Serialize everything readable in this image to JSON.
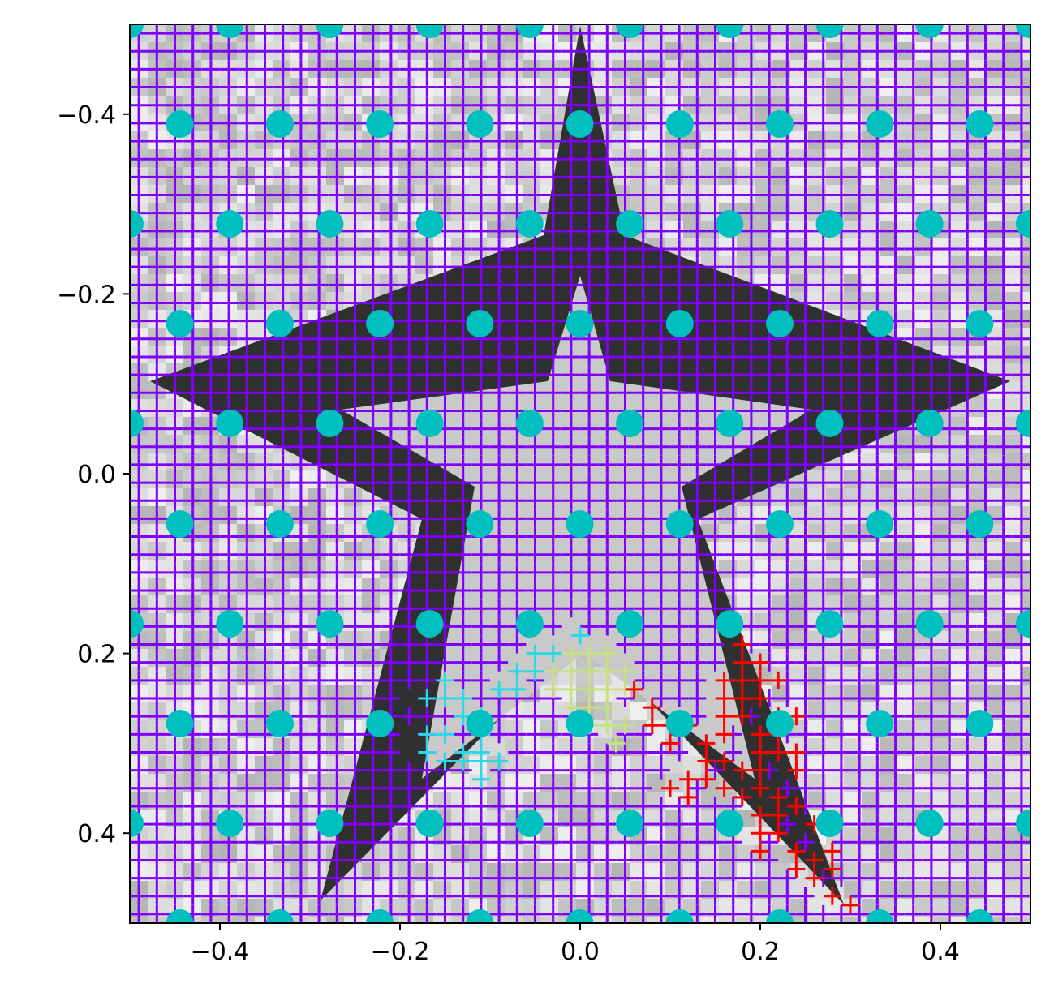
{
  "chart_data": {
    "type": "scatter",
    "title": "",
    "xlabel": "",
    "ylabel": "",
    "xlim": [
      -0.5,
      0.5
    ],
    "ylim": [
      0.5,
      -0.5
    ],
    "y_inverted": true,
    "grid": false,
    "background": "grayscale noisy image of a five-pointed star (dark star on light mottled background)",
    "x_ticks": [
      -0.4,
      -0.2,
      0.0,
      0.2,
      0.4
    ],
    "x_tick_labels": [
      "−0.4",
      "−0.2",
      "0.0",
      "0.2",
      "0.4"
    ],
    "y_ticks": [
      -0.4,
      -0.2,
      0.0,
      0.2,
      0.4
    ],
    "y_tick_labels": [
      "−0.4",
      "−0.2",
      "0.0",
      "0.2",
      "0.4"
    ],
    "series": [
      {
        "name": "purple-plus-grid",
        "marker": "+",
        "color": "#8000ff",
        "grid_x_start": -0.49,
        "grid_x_step": 0.02,
        "grid_x_count": 50,
        "grid_y_start": -0.49,
        "grid_y_step": 0.02,
        "grid_y_count": 50,
        "note": "dense plus markers covering the whole plot except points recolored in other series"
      },
      {
        "name": "cyan-plus-cluster",
        "marker": "+",
        "color": "#2ad9e8",
        "points": [
          [
            -0.15,
            0.23
          ],
          [
            -0.17,
            0.25
          ],
          [
            -0.15,
            0.25
          ],
          [
            -0.13,
            0.25
          ],
          [
            -0.05,
            0.2
          ],
          [
            -0.03,
            0.2
          ],
          [
            -0.07,
            0.22
          ],
          [
            -0.05,
            0.22
          ],
          [
            -0.09,
            0.24
          ],
          [
            -0.07,
            0.24
          ],
          [
            -0.13,
            0.27
          ],
          [
            -0.11,
            0.27
          ],
          [
            -0.17,
            0.29
          ],
          [
            -0.15,
            0.29
          ],
          [
            -0.11,
            0.29
          ],
          [
            -0.17,
            0.31
          ],
          [
            -0.13,
            0.31
          ],
          [
            -0.11,
            0.31
          ],
          [
            -0.15,
            0.32
          ],
          [
            -0.13,
            0.32
          ],
          [
            -0.11,
            0.32
          ],
          [
            -0.09,
            0.32
          ],
          [
            -0.11,
            0.34
          ],
          [
            0.0,
            0.18
          ]
        ]
      },
      {
        "name": "yellow-plus-cluster",
        "marker": "+",
        "color": "#c8e082",
        "points": [
          [
            -0.01,
            0.2
          ],
          [
            0.01,
            0.2
          ],
          [
            0.03,
            0.2
          ],
          [
            -0.03,
            0.22
          ],
          [
            -0.01,
            0.22
          ],
          [
            0.01,
            0.22
          ],
          [
            0.03,
            0.22
          ],
          [
            0.05,
            0.22
          ],
          [
            -0.03,
            0.24
          ],
          [
            -0.01,
            0.24
          ],
          [
            0.01,
            0.24
          ],
          [
            0.03,
            0.24
          ],
          [
            0.05,
            0.24
          ],
          [
            -0.01,
            0.26
          ],
          [
            0.01,
            0.26
          ],
          [
            0.03,
            0.26
          ],
          [
            0.01,
            0.28
          ],
          [
            0.03,
            0.28
          ],
          [
            0.05,
            0.28
          ],
          [
            0.04,
            0.3
          ]
        ]
      },
      {
        "name": "red-plus-cluster",
        "marker": "+",
        "color": "#ff0000",
        "points": [
          [
            0.18,
            0.19
          ],
          [
            0.18,
            0.21
          ],
          [
            0.2,
            0.21
          ],
          [
            0.16,
            0.23
          ],
          [
            0.18,
            0.23
          ],
          [
            0.2,
            0.23
          ],
          [
            0.22,
            0.23
          ],
          [
            0.06,
            0.24
          ],
          [
            0.08,
            0.26
          ],
          [
            0.16,
            0.25
          ],
          [
            0.18,
            0.25
          ],
          [
            0.2,
            0.25
          ],
          [
            0.08,
            0.28
          ],
          [
            0.1,
            0.28
          ],
          [
            0.12,
            0.28
          ],
          [
            0.16,
            0.27
          ],
          [
            0.18,
            0.27
          ],
          [
            0.22,
            0.27
          ],
          [
            0.24,
            0.27
          ],
          [
            0.1,
            0.3
          ],
          [
            0.14,
            0.3
          ],
          [
            0.16,
            0.29
          ],
          [
            0.2,
            0.29
          ],
          [
            0.22,
            0.29
          ],
          [
            0.14,
            0.32
          ],
          [
            0.16,
            0.32
          ],
          [
            0.2,
            0.31
          ],
          [
            0.22,
            0.31
          ],
          [
            0.24,
            0.31
          ],
          [
            0.12,
            0.34
          ],
          [
            0.14,
            0.34
          ],
          [
            0.18,
            0.33
          ],
          [
            0.2,
            0.33
          ],
          [
            0.24,
            0.33
          ],
          [
            0.1,
            0.35
          ],
          [
            0.12,
            0.36
          ],
          [
            0.16,
            0.35
          ],
          [
            0.18,
            0.36
          ],
          [
            0.2,
            0.35
          ],
          [
            0.22,
            0.36
          ],
          [
            0.24,
            0.37
          ],
          [
            0.2,
            0.38
          ],
          [
            0.22,
            0.38
          ],
          [
            0.26,
            0.39
          ],
          [
            0.2,
            0.4
          ],
          [
            0.22,
            0.4
          ],
          [
            0.24,
            0.42
          ],
          [
            0.2,
            0.42
          ],
          [
            0.26,
            0.43
          ],
          [
            0.28,
            0.42
          ],
          [
            0.28,
            0.44
          ],
          [
            0.24,
            0.44
          ],
          [
            0.26,
            0.45
          ],
          [
            0.28,
            0.47
          ],
          [
            0.3,
            0.48
          ]
        ]
      },
      {
        "name": "cyan-dot-grid",
        "marker": "o",
        "color": "#00bfbf",
        "grid_x_start": -0.5,
        "grid_x_step": 0.111,
        "grid_x_count": 10,
        "row_y_values": [
          -0.5,
          -0.389,
          -0.278,
          -0.167,
          -0.056,
          0.056,
          0.167,
          0.278,
          0.389,
          0.5
        ],
        "row_x_offsets": [
          0.0,
          0.0556,
          0.0,
          0.0556,
          0.0,
          0.0556,
          0.0,
          0.0556,
          0.0,
          0.0556
        ],
        "note": "hexagonal-style lattice of large cyan dots"
      }
    ]
  }
}
